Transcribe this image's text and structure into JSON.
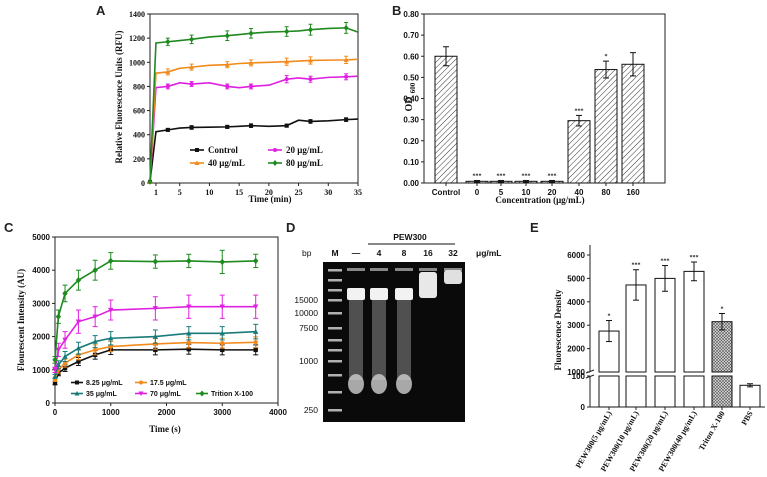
{
  "panels": {
    "A": "A",
    "B": "B",
    "C": "C",
    "D": "D",
    "E": "E"
  },
  "chart_data": [
    {
      "panel": "A",
      "type": "line",
      "xlabel": "Time (min)",
      "ylabel": "Relative Fluorescence Units (RFU)",
      "xlim": [
        0,
        35
      ],
      "ylim": [
        0,
        1400
      ],
      "xticks": [
        1,
        5,
        10,
        15,
        20,
        25,
        30,
        35
      ],
      "yticks": [
        0,
        200,
        400,
        600,
        800,
        1000,
        1200,
        1400
      ],
      "x": [
        0,
        1,
        3,
        5,
        7,
        10,
        13,
        15,
        17,
        20,
        23,
        25,
        27,
        30,
        33,
        35
      ],
      "series": [
        {
          "name": "Control",
          "color": "#111111",
          "marker": "square",
          "values": [
            10,
            425,
            440,
            455,
            460,
            462,
            465,
            470,
            475,
            470,
            475,
            520,
            510,
            515,
            525,
            530
          ],
          "errors": [
            0,
            15,
            12,
            15,
            15,
            12,
            12,
            15,
            15,
            15,
            12,
            20,
            15,
            15,
            15,
            15
          ]
        },
        {
          "name": "20 μg/mL",
          "color": "#e020e0",
          "marker": "circle",
          "values": [
            10,
            790,
            800,
            830,
            820,
            830,
            800,
            790,
            800,
            810,
            860,
            870,
            860,
            875,
            880,
            885
          ],
          "errors": [
            0,
            20,
            20,
            25,
            20,
            25,
            20,
            25,
            20,
            25,
            30,
            25,
            25,
            30,
            25,
            25
          ]
        },
        {
          "name": "40 μg/mL",
          "color": "#f28a1c",
          "marker": "triangle",
          "values": [
            10,
            910,
            920,
            950,
            960,
            975,
            980,
            990,
            995,
            1000,
            1005,
            1010,
            1015,
            1018,
            1020,
            1025
          ],
          "errors": [
            0,
            20,
            25,
            25,
            25,
            25,
            25,
            25,
            25,
            30,
            30,
            30,
            30,
            30,
            30,
            30
          ]
        },
        {
          "name": "80 μg/mL",
          "color": "#1f8a1f",
          "marker": "diamond",
          "values": [
            10,
            1160,
            1170,
            1180,
            1190,
            1210,
            1220,
            1230,
            1240,
            1250,
            1255,
            1260,
            1270,
            1280,
            1285,
            1250
          ],
          "errors": [
            0,
            30,
            30,
            35,
            35,
            35,
            40,
            40,
            40,
            40,
            40,
            45,
            45,
            45,
            45,
            40
          ]
        }
      ]
    },
    {
      "panel": "B",
      "type": "bar",
      "xlabel": "Concentration (μg/mL)",
      "ylabel_main": "OD",
      "ylabel_sub": "600",
      "ylim": [
        0,
        0.8
      ],
      "yticks": [
        "0.00",
        "0.10",
        "0.20",
        "0.30",
        "0.40",
        "0.50",
        "0.60",
        "0.70",
        "0.80"
      ],
      "categories": [
        "Control",
        "0",
        "5",
        "10",
        "20",
        "40",
        "80",
        "160"
      ],
      "values": [
        0.6,
        0.008,
        0.008,
        0.008,
        0.008,
        0.295,
        0.537,
        0.562
      ],
      "errors": [
        0.045,
        0.004,
        0.004,
        0.004,
        0.004,
        0.025,
        0.04,
        0.055
      ],
      "significance": [
        "",
        "***",
        "***",
        "***",
        "***",
        "***",
        "*",
        ""
      ]
    },
    {
      "panel": "C",
      "type": "line",
      "xlabel": "Time (s)",
      "ylabel": "Flourescent Intensity (AU)",
      "xlim": [
        0,
        4000
      ],
      "ylim": [
        0,
        5000
      ],
      "xticks": [
        0,
        1000,
        2000,
        3000,
        4000
      ],
      "yticks": [
        0,
        1000,
        2000,
        3000,
        4000,
        5000
      ],
      "x": [
        0,
        60,
        180,
        420,
        720,
        1000,
        1800,
        2400,
        3000,
        3600
      ],
      "series": [
        {
          "name": "8.25 μg/mL",
          "color": "#111111",
          "marker": "square",
          "values": [
            600,
            900,
            1050,
            1250,
            1450,
            1600,
            1600,
            1620,
            1600,
            1600
          ],
          "errors": [
            50,
            80,
            100,
            120,
            130,
            140,
            150,
            150,
            150,
            150
          ]
        },
        {
          "name": "17.5 μg/mL",
          "color": "#f28a1c",
          "marker": "circle",
          "values": [
            700,
            1000,
            1200,
            1450,
            1600,
            1700,
            1780,
            1820,
            1800,
            1830
          ],
          "errors": [
            50,
            100,
            120,
            150,
            150,
            150,
            160,
            160,
            150,
            160
          ]
        },
        {
          "name": "35 μg/mL",
          "color": "#1a7a7a",
          "marker": "triangle",
          "values": [
            800,
            1150,
            1400,
            1650,
            1850,
            1950,
            2000,
            2100,
            2100,
            2150
          ],
          "errors": [
            60,
            120,
            150,
            180,
            180,
            200,
            200,
            200,
            200,
            220
          ]
        },
        {
          "name": "70 μg/mL",
          "color": "#e020e0",
          "marker": "down-triangle",
          "values": [
            1000,
            1600,
            1900,
            2450,
            2600,
            2800,
            2850,
            2900,
            2900,
            2900
          ],
          "errors": [
            80,
            200,
            250,
            350,
            300,
            300,
            350,
            350,
            350,
            350
          ]
        },
        {
          "name": "Trition X-100",
          "color": "#1f8a1f",
          "marker": "diamond",
          "values": [
            1300,
            2600,
            3300,
            3700,
            4000,
            4280,
            4260,
            4280,
            4250,
            4280
          ],
          "errors": [
            100,
            200,
            250,
            300,
            300,
            250,
            200,
            200,
            350,
            200
          ]
        }
      ]
    },
    {
      "panel": "D",
      "type": "other",
      "title": "PEW300",
      "units": "μg/mL",
      "bp_header": "bp",
      "marker_lane": "M",
      "lanes": [
        "—",
        "4",
        "8",
        "16",
        "32"
      ],
      "bp_markers": [
        "15000",
        "10000",
        "7500",
        "1000",
        "250"
      ]
    },
    {
      "panel": "E",
      "type": "bar",
      "ylabel": "Fluorescence Density",
      "yticks": [
        0,
        100,
        1000,
        2000,
        3000,
        4000,
        5000,
        6000
      ],
      "axis_break": true,
      "categories": [
        "PEW300(5 μg/mL)",
        "PEW300(10 μg/mL)",
        "PEW300(20 μg/mL)",
        "PEW300(40 μg/mL)",
        "Triton X-100",
        "PBS"
      ],
      "values": [
        2750,
        4720,
        5000,
        5300,
        3150,
        70
      ],
      "errors": [
        450,
        650,
        550,
        400,
        350,
        5
      ],
      "significance": [
        "*",
        "***",
        "***",
        "***",
        "*",
        ""
      ]
    }
  ]
}
